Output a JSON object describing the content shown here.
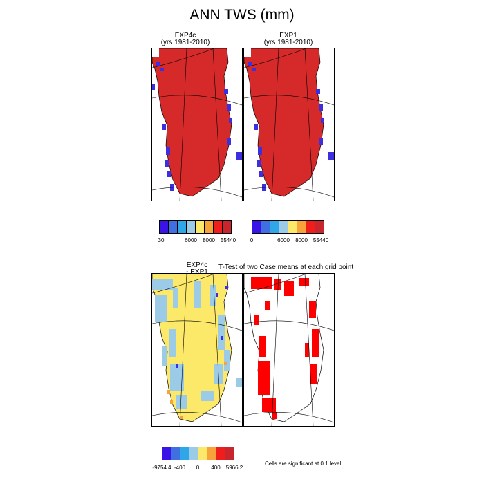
{
  "title": "ANN TWS (mm)",
  "panels": {
    "exp4c": {
      "name": "EXP4c",
      "years": "(yrs 1981-2010)"
    },
    "exp1": {
      "name": "EXP1",
      "years": "(yrs 1981-2010)"
    },
    "diff": {
      "line1": "EXP4c",
      "line2": "- EXP1"
    },
    "ttest": {
      "title": "T-Test of two Case means at each grid point"
    }
  },
  "colors": {
    "ice_red": "#d62a2a",
    "ocean_white": "#ffffff",
    "tundra_blue": "#3b2fe0",
    "diff_yellow": "#fce96a",
    "diff_lightblue": "#9ccbe8",
    "sig_red": "#ff0000"
  },
  "colorbars": {
    "exp4c": {
      "swatches": [
        "#3a14e6",
        "#3f6fe0",
        "#2ea6e8",
        "#9ccbe8",
        "#fce96a",
        "#f8a23a",
        "#f01d1d",
        "#c8252c"
      ],
      "labels": [
        "30",
        "6000",
        "8000",
        "55440"
      ]
    },
    "exp1": {
      "swatches": [
        "#3a14e6",
        "#3f6fe0",
        "#2ea6e8",
        "#9ccbe8",
        "#fce96a",
        "#f8a23a",
        "#f01d1d",
        "#c8252c"
      ],
      "labels": [
        "0",
        "6000",
        "8000",
        "55440"
      ]
    },
    "diff": {
      "swatches": [
        "#3a14e6",
        "#3f6fe0",
        "#2ea6e8",
        "#9ccbe8",
        "#fce96a",
        "#f8a23a",
        "#f01d1d",
        "#c8252c"
      ],
      "labels": [
        "-9754.4",
        "-400",
        "0",
        "400",
        "5966.2"
      ]
    }
  },
  "significance_note": "Cells are significant at 0.1 level"
}
